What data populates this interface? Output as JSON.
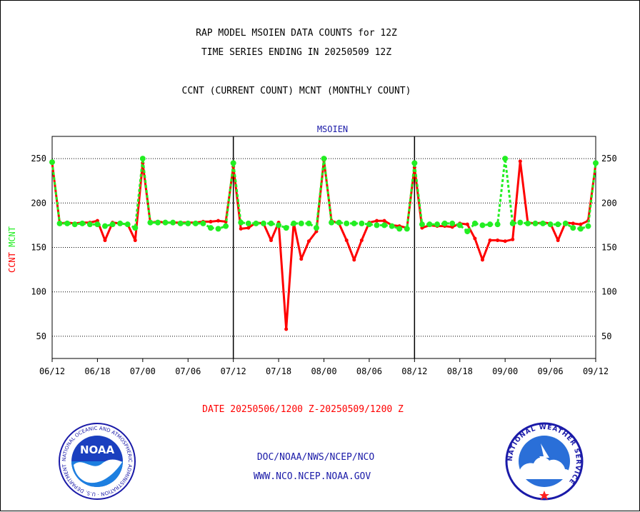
{
  "header": {
    "line1": "RAP MODEL MSOIEN DATA COUNTS for 12Z",
    "line2": "TIME SERIES ENDING IN 20250509 12Z",
    "line3": "CCNT (CURRENT COUNT) MCNT (MONTHLY COUNT)"
  },
  "footer": {
    "date_range": "DATE 20250506/1200 Z-20250509/1200 Z",
    "org": "DOC/NOAA/NWS/NCEP/NCO",
    "url": "WWW.NCO.NCEP.NOAA.GOV"
  },
  "logos": {
    "noaa_text": "NOAA",
    "noaa_ring": "NATIONAL OCEANIC AND ATMOSPHERIC ADMINISTRATION · U.S. DEPARTMENT OF COMMERCE",
    "nws_ring": "NATIONAL WEATHER SERVICE"
  },
  "colors": {
    "ccnt": "#ff0000",
    "mcnt": "#22ee22",
    "title": "#000000",
    "inner_title": "#1a1aa8",
    "footer_blue": "#1a1aa8",
    "date_red": "#ff0000"
  },
  "chart_data": {
    "type": "line",
    "title": "MSOIEN",
    "ylabel_ccnt": "CCNT",
    "ylabel_mcnt": "MCNT",
    "ylim": [
      25,
      275
    ],
    "yticks": [
      50,
      100,
      150,
      200,
      250
    ],
    "xlim": [
      0,
      144
    ],
    "xticks": [
      {
        "x": 0,
        "label": "06/12"
      },
      {
        "x": 12,
        "label": "06/18"
      },
      {
        "x": 24,
        "label": "07/00"
      },
      {
        "x": 36,
        "label": "07/06"
      },
      {
        "x": 48,
        "label": "07/12"
      },
      {
        "x": 60,
        "label": "07/18"
      },
      {
        "x": 72,
        "label": "08/00"
      },
      {
        "x": 84,
        "label": "08/06"
      },
      {
        "x": 96,
        "label": "08/12"
      },
      {
        "x": 108,
        "label": "08/18"
      },
      {
        "x": 120,
        "label": "09/00"
      },
      {
        "x": 132,
        "label": "09/06"
      },
      {
        "x": 144,
        "label": "09/12"
      }
    ],
    "day_separators": [
      48,
      96
    ],
    "grid": true,
    "series": [
      {
        "name": "CCNT",
        "x": [
          0,
          2,
          4,
          6,
          8,
          10,
          12,
          14,
          16,
          18,
          20,
          22,
          24,
          26,
          28,
          30,
          32,
          34,
          36,
          38,
          40,
          42,
          44,
          46,
          48,
          50,
          52,
          54,
          56,
          58,
          60,
          62,
          64,
          66,
          68,
          70,
          72,
          74,
          76,
          78,
          80,
          82,
          84,
          86,
          88,
          90,
          92,
          94,
          96,
          98,
          100,
          102,
          104,
          106,
          108,
          110,
          112,
          114,
          116,
          118,
          120,
          122,
          124,
          126,
          128,
          130,
          132,
          134,
          136,
          138,
          140,
          142,
          144
        ],
        "values": [
          245,
          177,
          178,
          177,
          178,
          178,
          180,
          158,
          178,
          177,
          176,
          158,
          245,
          178,
          179,
          178,
          178,
          178,
          178,
          178,
          179,
          179,
          180,
          179,
          241,
          171,
          172,
          178,
          177,
          158,
          178,
          58,
          178,
          137,
          157,
          168,
          248,
          180,
          177,
          158,
          136,
          158,
          178,
          180,
          180,
          175,
          174,
          172,
          240,
          172,
          175,
          174,
          174,
          173,
          177,
          176,
          160,
          136,
          158,
          158,
          157,
          159,
          247,
          178,
          177,
          178,
          177,
          158,
          178,
          177,
          176,
          180,
          244
        ]
      },
      {
        "name": "MCNT",
        "x": [
          0,
          2,
          4,
          6,
          8,
          10,
          12,
          14,
          16,
          18,
          20,
          22,
          24,
          26,
          28,
          30,
          32,
          34,
          36,
          38,
          40,
          42,
          44,
          46,
          48,
          50,
          52,
          54,
          56,
          58,
          60,
          62,
          64,
          66,
          68,
          70,
          72,
          74,
          76,
          78,
          80,
          82,
          84,
          86,
          88,
          90,
          92,
          94,
          96,
          98,
          100,
          102,
          104,
          106,
          108,
          110,
          112,
          114,
          116,
          118,
          120,
          122,
          124,
          126,
          128,
          130,
          132,
          134,
          136,
          138,
          140,
          142,
          144
        ],
        "values": [
          246,
          177,
          177,
          176,
          177,
          176,
          176,
          174,
          176,
          177,
          176,
          172,
          250,
          178,
          178,
          178,
          178,
          177,
          177,
          177,
          177,
          172,
          171,
          174,
          245,
          178,
          177,
          177,
          177,
          177,
          175,
          172,
          177,
          177,
          177,
          172,
          250,
          178,
          178,
          177,
          177,
          177,
          176,
          175,
          175,
          174,
          171,
          171,
          245,
          176,
          176,
          176,
          177,
          177,
          175,
          168,
          177,
          175,
          176,
          176,
          250,
          177,
          178,
          177,
          177,
          177,
          176,
          176,
          177,
          172,
          171,
          174,
          245
        ]
      }
    ]
  }
}
